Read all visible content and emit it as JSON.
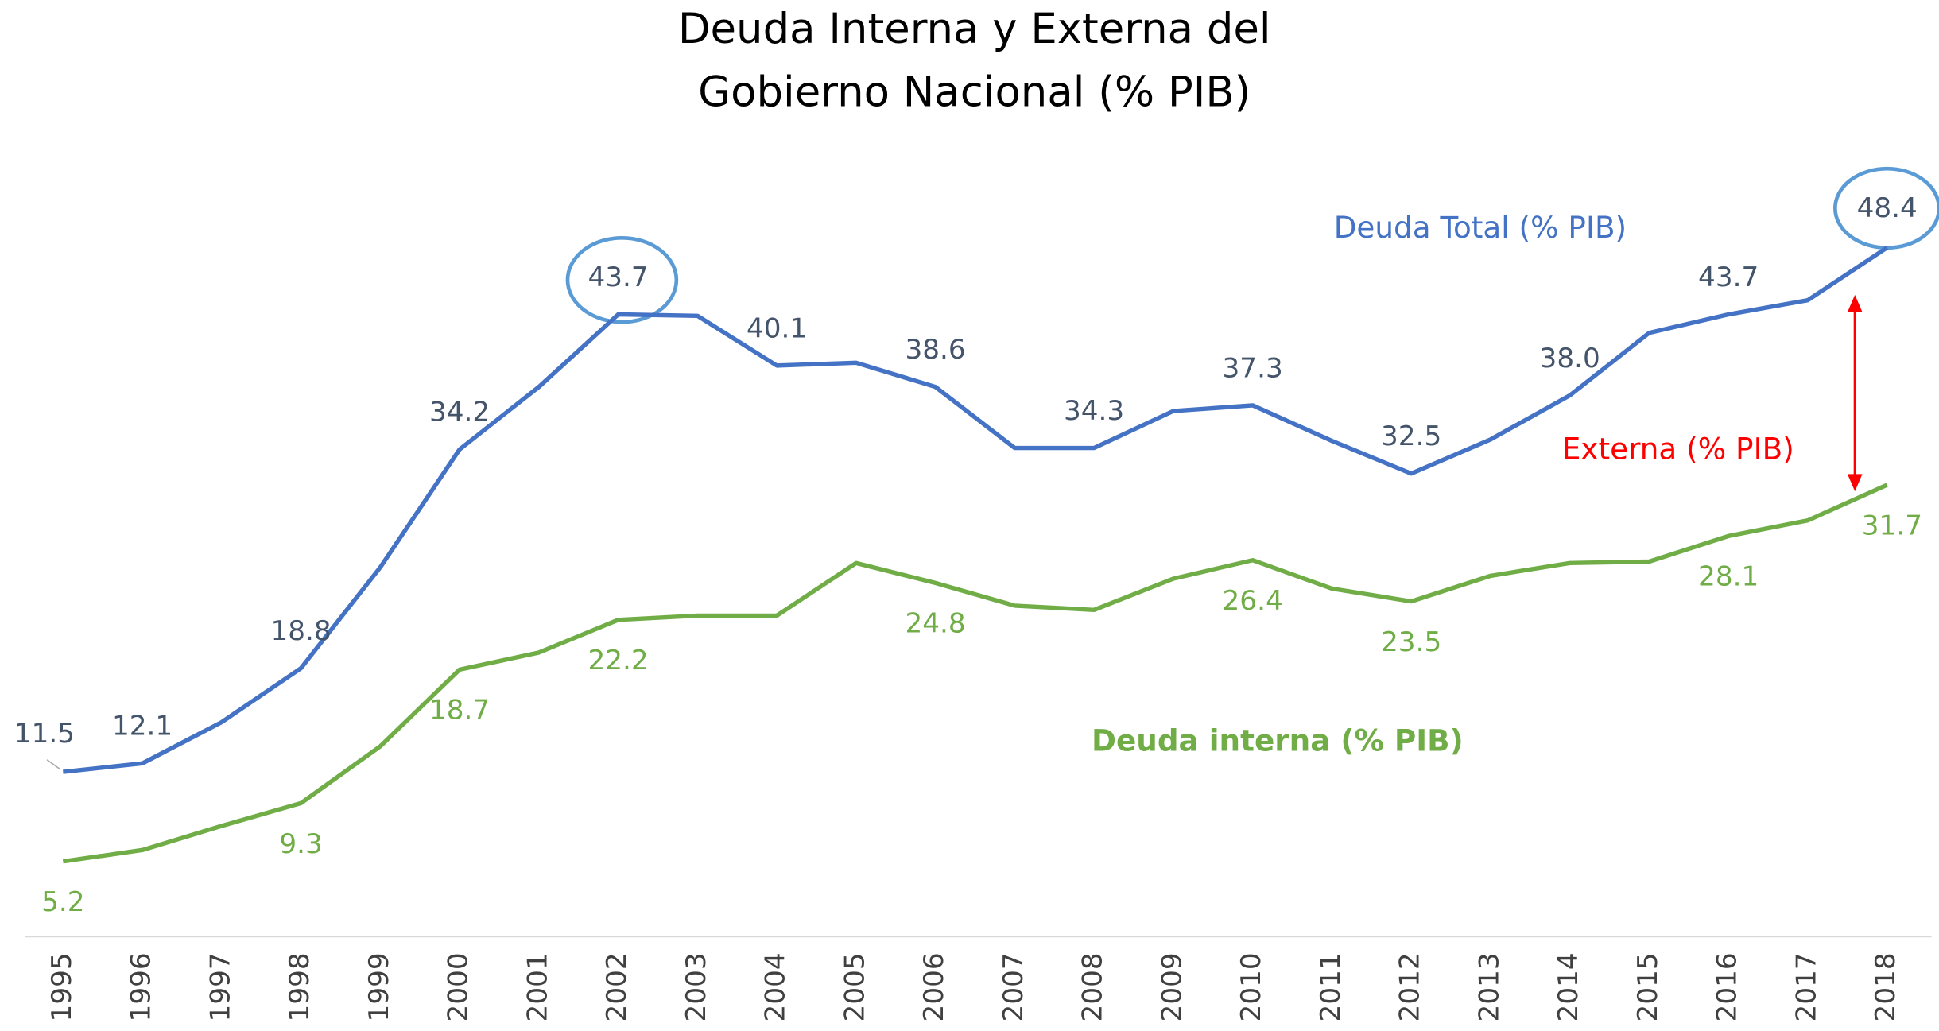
{
  "chart_data": {
    "type": "line",
    "title": [
      "Deuda Interna y Externa del",
      "Gobierno Nacional (% PIB)"
    ],
    "categories": [
      "1995",
      "1996",
      "1997",
      "1998",
      "1999",
      "2000",
      "2001",
      "2002",
      "2003",
      "2004",
      "2005",
      "2006",
      "2007",
      "2008",
      "2009",
      "2010",
      "2011",
      "2012",
      "2013",
      "2014",
      "2015",
      "2016",
      "2017",
      "2018"
    ],
    "series": [
      {
        "name": "Deuda Total (% PIB)",
        "color": "#4472c4",
        "label_color": "#44546a",
        "values": [
          11.5,
          12.1,
          15.0,
          18.8,
          25.9,
          34.2,
          38.6,
          43.7,
          43.6,
          40.1,
          40.3,
          38.6,
          34.3,
          34.3,
          36.9,
          37.3,
          34.8,
          32.5,
          34.9,
          38.0,
          42.4,
          43.7,
          44.7,
          48.4
        ],
        "value_labels": [
          "11.5",
          "12.1",
          null,
          "18.8",
          null,
          "34.2",
          null,
          "43.7",
          null,
          "40.1",
          null,
          "38.6",
          null,
          "34.3",
          null,
          "37.3",
          null,
          "32.5",
          null,
          "38.0",
          null,
          "43.7",
          null,
          "48.4"
        ]
      },
      {
        "name": "Deuda interna (% PIB)",
        "color": "#70ad47",
        "label_color": "#70ad47",
        "values": [
          5.2,
          6.0,
          7.7,
          9.3,
          13.3,
          18.7,
          19.9,
          22.2,
          22.5,
          22.5,
          26.2,
          24.8,
          23.2,
          22.9,
          25.1,
          26.4,
          24.4,
          23.5,
          25.3,
          26.2,
          26.3,
          28.1,
          29.2,
          31.7
        ],
        "value_labels": [
          "5.2",
          null,
          null,
          "9.3",
          null,
          "18.7",
          null,
          "22.2",
          null,
          null,
          null,
          "24.8",
          null,
          null,
          null,
          "26.4",
          null,
          "23.5",
          null,
          null,
          null,
          "28.1",
          null,
          "31.7"
        ]
      }
    ],
    "annotations": [
      {
        "text": "Externa (% PIB)",
        "color": "#ff0000"
      }
    ],
    "ylim": [
      0,
      52
    ]
  }
}
